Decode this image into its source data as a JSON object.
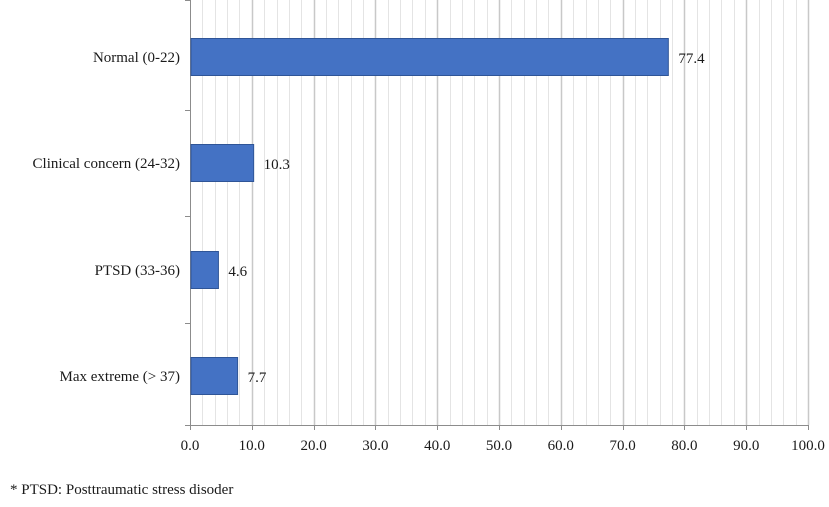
{
  "chart_data": {
    "type": "bar",
    "orientation": "horizontal",
    "title": "",
    "xlabel": "",
    "ylabel": "",
    "categories": [
      "Normal (0-22)",
      "Clinical concern (24-32)",
      "PTSD (33-36)",
      "Max extreme (> 37)"
    ],
    "values": [
      77.4,
      10.3,
      4.6,
      7.7
    ],
    "data_labels": [
      "77.4",
      "10.3",
      "4.6",
      "7.7"
    ],
    "xlim": [
      0,
      100
    ],
    "x_ticks": [
      "0.0",
      "10.0",
      "20.0",
      "30.0",
      "40.0",
      "50.0",
      "60.0",
      "70.0",
      "80.0",
      "90.0",
      "100.0"
    ],
    "grid": "vertical major and minor",
    "legend": "none",
    "bar_color": "#4472c4"
  },
  "footnote": "* PTSD: Posttraumatic stress disoder"
}
